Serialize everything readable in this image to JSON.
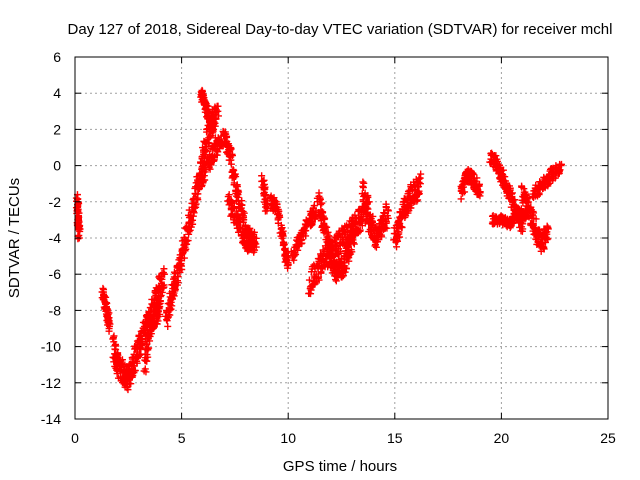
{
  "chart_data": {
    "type": "scatter",
    "title": "Day 127 of 2018, Sidereal Day-to-day VTEC variation (SDTVAR) for receiver mchl",
    "xlabel": "GPS time / hours",
    "ylabel": "SDTVAR / TECUs",
    "xlim": [
      0,
      25
    ],
    "ylim": [
      -14,
      6
    ],
    "xticks": [
      0,
      5,
      10,
      15,
      20,
      25
    ],
    "yticks": [
      -14,
      -12,
      -10,
      -8,
      -6,
      -4,
      -2,
      0,
      2,
      4,
      6
    ],
    "grid": true,
    "marker": "+",
    "color": "#ff0000",
    "segments": [
      {
        "x": [
          0.1,
          0.15,
          0.2
        ],
        "y": [
          -2.0,
          -3.0,
          -4.0
        ],
        "spread": 0.8
      },
      {
        "x": [
          1.3,
          1.5,
          1.6
        ],
        "y": [
          -7.0,
          -8.0,
          -9.0
        ],
        "spread": 0.6
      },
      {
        "x": [
          1.8,
          2.0,
          2.3,
          2.5,
          2.7,
          3.0,
          3.3,
          3.6,
          3.9,
          4.2
        ],
        "y": [
          -10.0,
          -11.0,
          -11.5,
          -11.8,
          -11.0,
          -10.0,
          -9.0,
          -8.0,
          -7.0,
          -6.0
        ],
        "spread": 1.3
      },
      {
        "x": [
          3.3,
          3.5,
          3.8,
          4.0
        ],
        "y": [
          -11.0,
          -9.0,
          -8.5,
          -7.5
        ],
        "spread": 0.8
      },
      {
        "x": [
          4.3,
          4.6,
          4.9,
          5.2,
          5.5,
          5.8,
          6.1,
          6.4,
          6.7
        ],
        "y": [
          -8.5,
          -7.0,
          -5.5,
          -4.0,
          -2.5,
          -1.0,
          1.0,
          2.5,
          3.0
        ],
        "spread": 1.2
      },
      {
        "x": [
          5.9,
          6.1,
          6.3,
          6.5
        ],
        "y": [
          4.0,
          3.5,
          2.5,
          2.0
        ],
        "spread": 0.5
      },
      {
        "x": [
          5.8,
          6.2,
          6.6,
          7.0,
          7.3,
          7.6,
          7.9,
          8.2,
          8.5
        ],
        "y": [
          -1.0,
          0.0,
          1.0,
          1.5,
          0.5,
          -1.5,
          -3.0,
          -4.0,
          -4.5
        ],
        "spread": 1.0
      },
      {
        "x": [
          7.2,
          7.6,
          8.0,
          8.4
        ],
        "y": [
          -2.0,
          -3.0,
          -4.5,
          -4.0
        ],
        "spread": 0.8
      },
      {
        "x": [
          8.8,
          9.0
        ],
        "y": [
          -0.8,
          -2.5
        ],
        "spread": 0.5
      },
      {
        "x": [
          9.2,
          9.5,
          9.8,
          10.0
        ],
        "y": [
          -2.0,
          -2.5,
          -4.5,
          -5.5
        ],
        "spread": 0.8
      },
      {
        "x": [
          10.2,
          10.6,
          11.0,
          11.3
        ],
        "y": [
          -5.0,
          -4.0,
          -3.0,
          -2.5
        ],
        "spread": 0.8
      },
      {
        "x": [
          11.4,
          11.7,
          12.0,
          12.3,
          12.6,
          12.9,
          13.2
        ],
        "y": [
          -2.0,
          -3.5,
          -5.0,
          -6.0,
          -5.5,
          -4.5,
          -3.5
        ],
        "spread": 1.2
      },
      {
        "x": [
          11.0,
          11.4,
          11.8,
          12.2,
          12.6,
          13.0,
          13.4,
          13.8
        ],
        "y": [
          -6.5,
          -5.8,
          -5.0,
          -4.5,
          -4.0,
          -3.5,
          -3.0,
          -2.0
        ],
        "spread": 1.3
      },
      {
        "x": [
          13.5,
          13.8,
          14.1,
          14.4,
          14.7
        ],
        "y": [
          -1.5,
          -3.0,
          -4.0,
          -3.5,
          -2.5
        ],
        "spread": 1.2
      },
      {
        "x": [
          15.0,
          15.3,
          15.6,
          15.9,
          16.2
        ],
        "y": [
          -4.0,
          -3.0,
          -2.0,
          -1.5,
          -1.0
        ],
        "spread": 1.3
      },
      {
        "x": [
          18.1,
          18.4,
          18.7,
          19.0
        ],
        "y": [
          -1.5,
          -0.5,
          -0.8,
          -1.5
        ],
        "spread": 0.8
      },
      {
        "x": [
          19.5,
          19.8,
          20.1,
          20.4,
          20.7,
          21.0
        ],
        "y": [
          0.5,
          0.0,
          -0.8,
          -1.5,
          -2.5,
          -3.5
        ],
        "spread": 0.8
      },
      {
        "x": [
          19.6,
          20.0,
          20.4,
          20.8,
          21.2
        ],
        "y": [
          -3.0,
          -3.0,
          -3.2,
          -2.5,
          -2.8
        ],
        "spread": 0.5
      },
      {
        "x": [
          21.0,
          21.3,
          21.6,
          21.9,
          22.2
        ],
        "y": [
          -1.5,
          -2.5,
          -3.5,
          -4.5,
          -3.5
        ],
        "spread": 1.0
      },
      {
        "x": [
          21.5,
          22.0,
          22.4,
          22.8
        ],
        "y": [
          -1.5,
          -1.0,
          -0.5,
          0.0
        ],
        "spread": 0.7
      }
    ]
  }
}
